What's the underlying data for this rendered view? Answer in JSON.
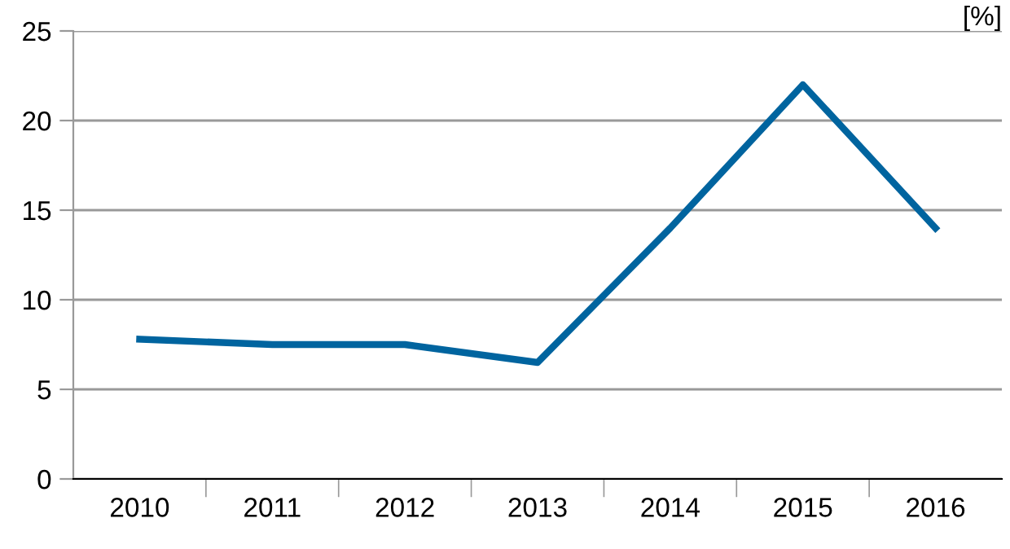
{
  "chart_data": {
    "type": "line",
    "ylabel": "[%]",
    "categories": [
      "2010",
      "2011",
      "2012",
      "2013",
      "2014",
      "2015",
      "2016"
    ],
    "series": [
      {
        "color": "#00649f",
        "values": [
          7.8,
          7.5,
          7.5,
          6.5,
          14,
          22,
          14
        ]
      }
    ],
    "ylim": [
      0,
      25
    ],
    "yticks": [
      0,
      5,
      10,
      15,
      20,
      25
    ],
    "grid": "y",
    "legend": false,
    "marker": "none",
    "line_style": "solid"
  }
}
